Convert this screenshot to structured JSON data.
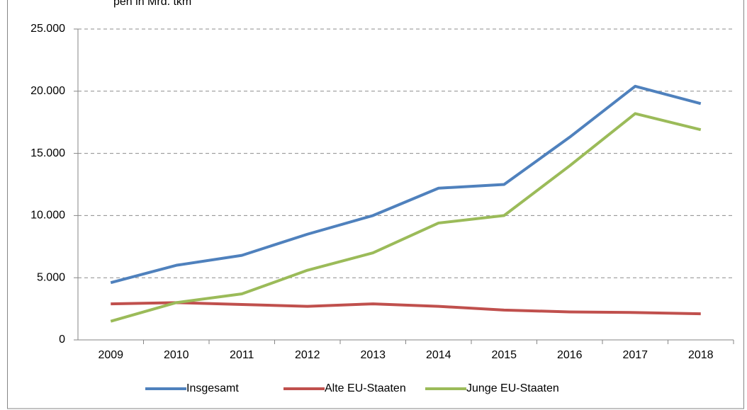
{
  "chart_data": {
    "type": "line",
    "title": "pen in Mrd. tkm",
    "categories": [
      "2009",
      "2010",
      "2011",
      "2012",
      "2013",
      "2014",
      "2015",
      "2016",
      "2017",
      "2018"
    ],
    "series": [
      {
        "name": "Insgesamt",
        "color": "#4f81bd",
        "values": [
          4600,
          6000,
          6800,
          8500,
          10000,
          12200,
          12500,
          16300,
          20400,
          19000
        ]
      },
      {
        "name": "Alte EU-Staaten",
        "color": "#c0504d",
        "values": [
          2900,
          3000,
          2850,
          2700,
          2900,
          2700,
          2400,
          2250,
          2200,
          2100
        ]
      },
      {
        "name": "Junge EU-Staaten",
        "color": "#9bbb59",
        "values": [
          1500,
          3000,
          3700,
          5600,
          7000,
          9400,
          10000,
          14000,
          18200,
          16900
        ]
      }
    ],
    "ylim": [
      0,
      25000
    ],
    "yticks": [
      0,
      {
        "value": 5000,
        "label": "5.000"
      },
      {
        "value": 10000,
        "label": "10.000"
      },
      {
        "value": 15000,
        "label": "15.000"
      },
      {
        "value": 20000,
        "label": "20.000"
      },
      {
        "value": 25000,
        "label": "25.000"
      }
    ],
    "grid": true,
    "legend": "bottom"
  }
}
